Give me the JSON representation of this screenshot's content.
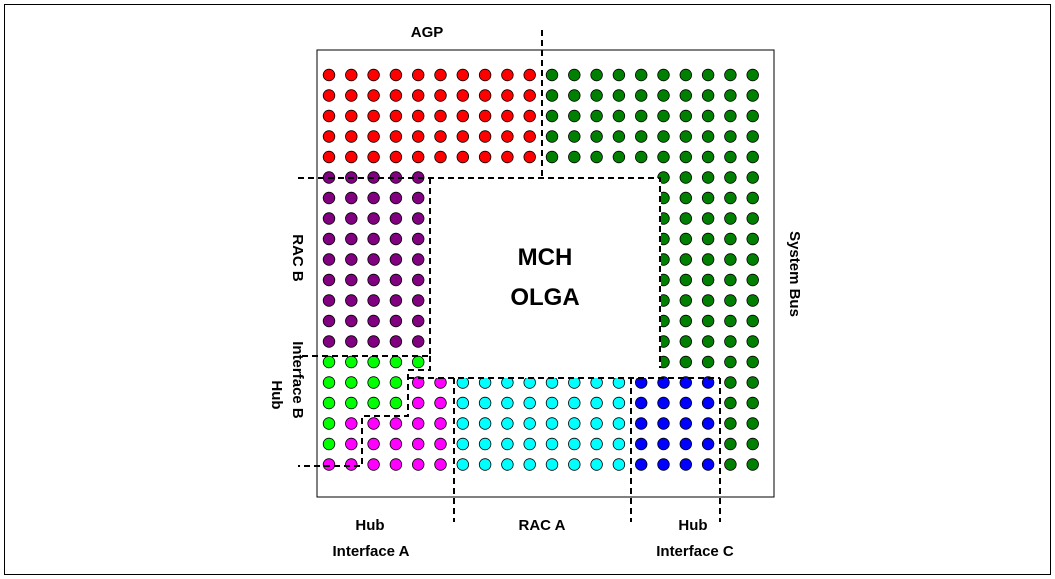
{
  "center_label": {
    "line1": "MCH",
    "line2": "OLGA"
  },
  "labels": {
    "agp": "AGP",
    "system_bus": "System Bus",
    "rac_b": "RAC B",
    "hub_interface_b_line1": "Hub",
    "hub_interface_b_line2": "Interface B",
    "hub_interface_a_line1": "Hub",
    "hub_interface_a_line2": "Interface A",
    "rac_a": "RAC A",
    "hub_interface_c_line1": "Hub",
    "hub_interface_c_line2": "Interface C"
  },
  "colors": {
    "agp": "#ff0000",
    "system_bus": "#008000",
    "rac_b": "#800080",
    "hub_interface_b": "#00ff00",
    "hub_interface_a": "#ff00ff",
    "rac_a": "#00ffff",
    "hub_interface_c": "#0000ff"
  }
}
